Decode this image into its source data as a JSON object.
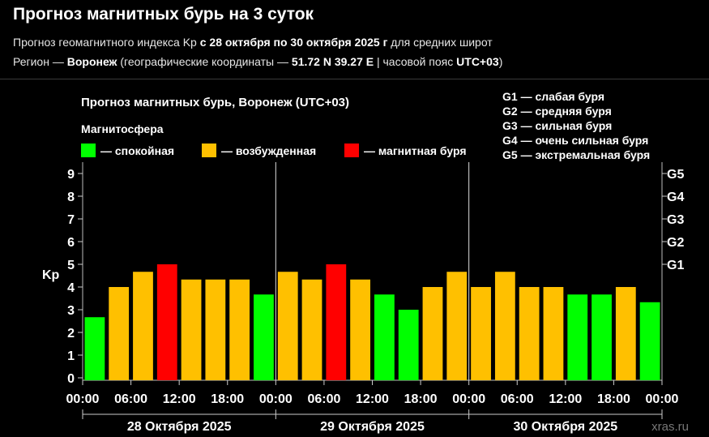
{
  "header": {
    "title": "Прогноз магнитных бурь на 3 суток",
    "line1": {
      "prefix": "Прогноз геомагнитного индекса Kp ",
      "dates": "с 28 октября по 30 октября 2025 г",
      "suffix": " для средних широт"
    },
    "line2": {
      "prefix": "Регион — ",
      "city": "Воронеж",
      "mid": " (географические координаты — ",
      "coords": "51.72 N 39.27 E",
      "mid2": " | часовой пояс ",
      "tz": "UTC+03",
      "suffix": ")"
    }
  },
  "chart_data": {
    "type": "bar",
    "title": "Прогноз магнитных бурь, Воронеж (UTC+03)",
    "legend": {
      "title": "Магнитосфера",
      "items": [
        {
          "label": "— спокойная",
          "color": "#00ff00"
        },
        {
          "label": "— возбужденная",
          "color": "#ffc000"
        },
        {
          "label": "— магнитная буря",
          "color": "#ff0000"
        }
      ]
    },
    "storm_legend": [
      "G1 — слабая буря",
      "G2 — средняя буря",
      "G3 — сильная буря",
      "G4 — очень сильная буря",
      "G5 — экстремальная буря"
    ],
    "ylabel": "Kp",
    "ylim": [
      0,
      9
    ],
    "yticks": [
      "0",
      "1",
      "2",
      "3",
      "4",
      "5",
      "6",
      "7",
      "8",
      "9"
    ],
    "right_ticks": [
      {
        "kp": 5,
        "label": "G1"
      },
      {
        "kp": 6,
        "label": "G2"
      },
      {
        "kp": 7,
        "label": "G3"
      },
      {
        "kp": 8,
        "label": "G4"
      },
      {
        "kp": 9,
        "label": "G5"
      }
    ],
    "xtick_labels": [
      "00:00",
      "06:00",
      "12:00",
      "18:00",
      "00:00",
      "06:00",
      "12:00",
      "18:00",
      "00:00",
      "06:00",
      "12:00",
      "18:00",
      "00:00"
    ],
    "days": [
      "28 Октября 2025",
      "29 Октября 2025",
      "30 Октября 2025"
    ],
    "values": [
      2.67,
      4.0,
      4.67,
      5.0,
      4.33,
      4.33,
      4.33,
      3.67,
      4.67,
      4.33,
      5.0,
      4.33,
      3.67,
      3.0,
      4.0,
      4.67,
      4.0,
      4.67,
      4.0,
      4.0,
      3.67,
      3.67,
      4.0,
      3.33
    ],
    "colors": {
      "quiet": "#00ff00",
      "active": "#ffc000",
      "storm": "#ff0000"
    },
    "grid": true,
    "watermark": "xras.ru"
  }
}
